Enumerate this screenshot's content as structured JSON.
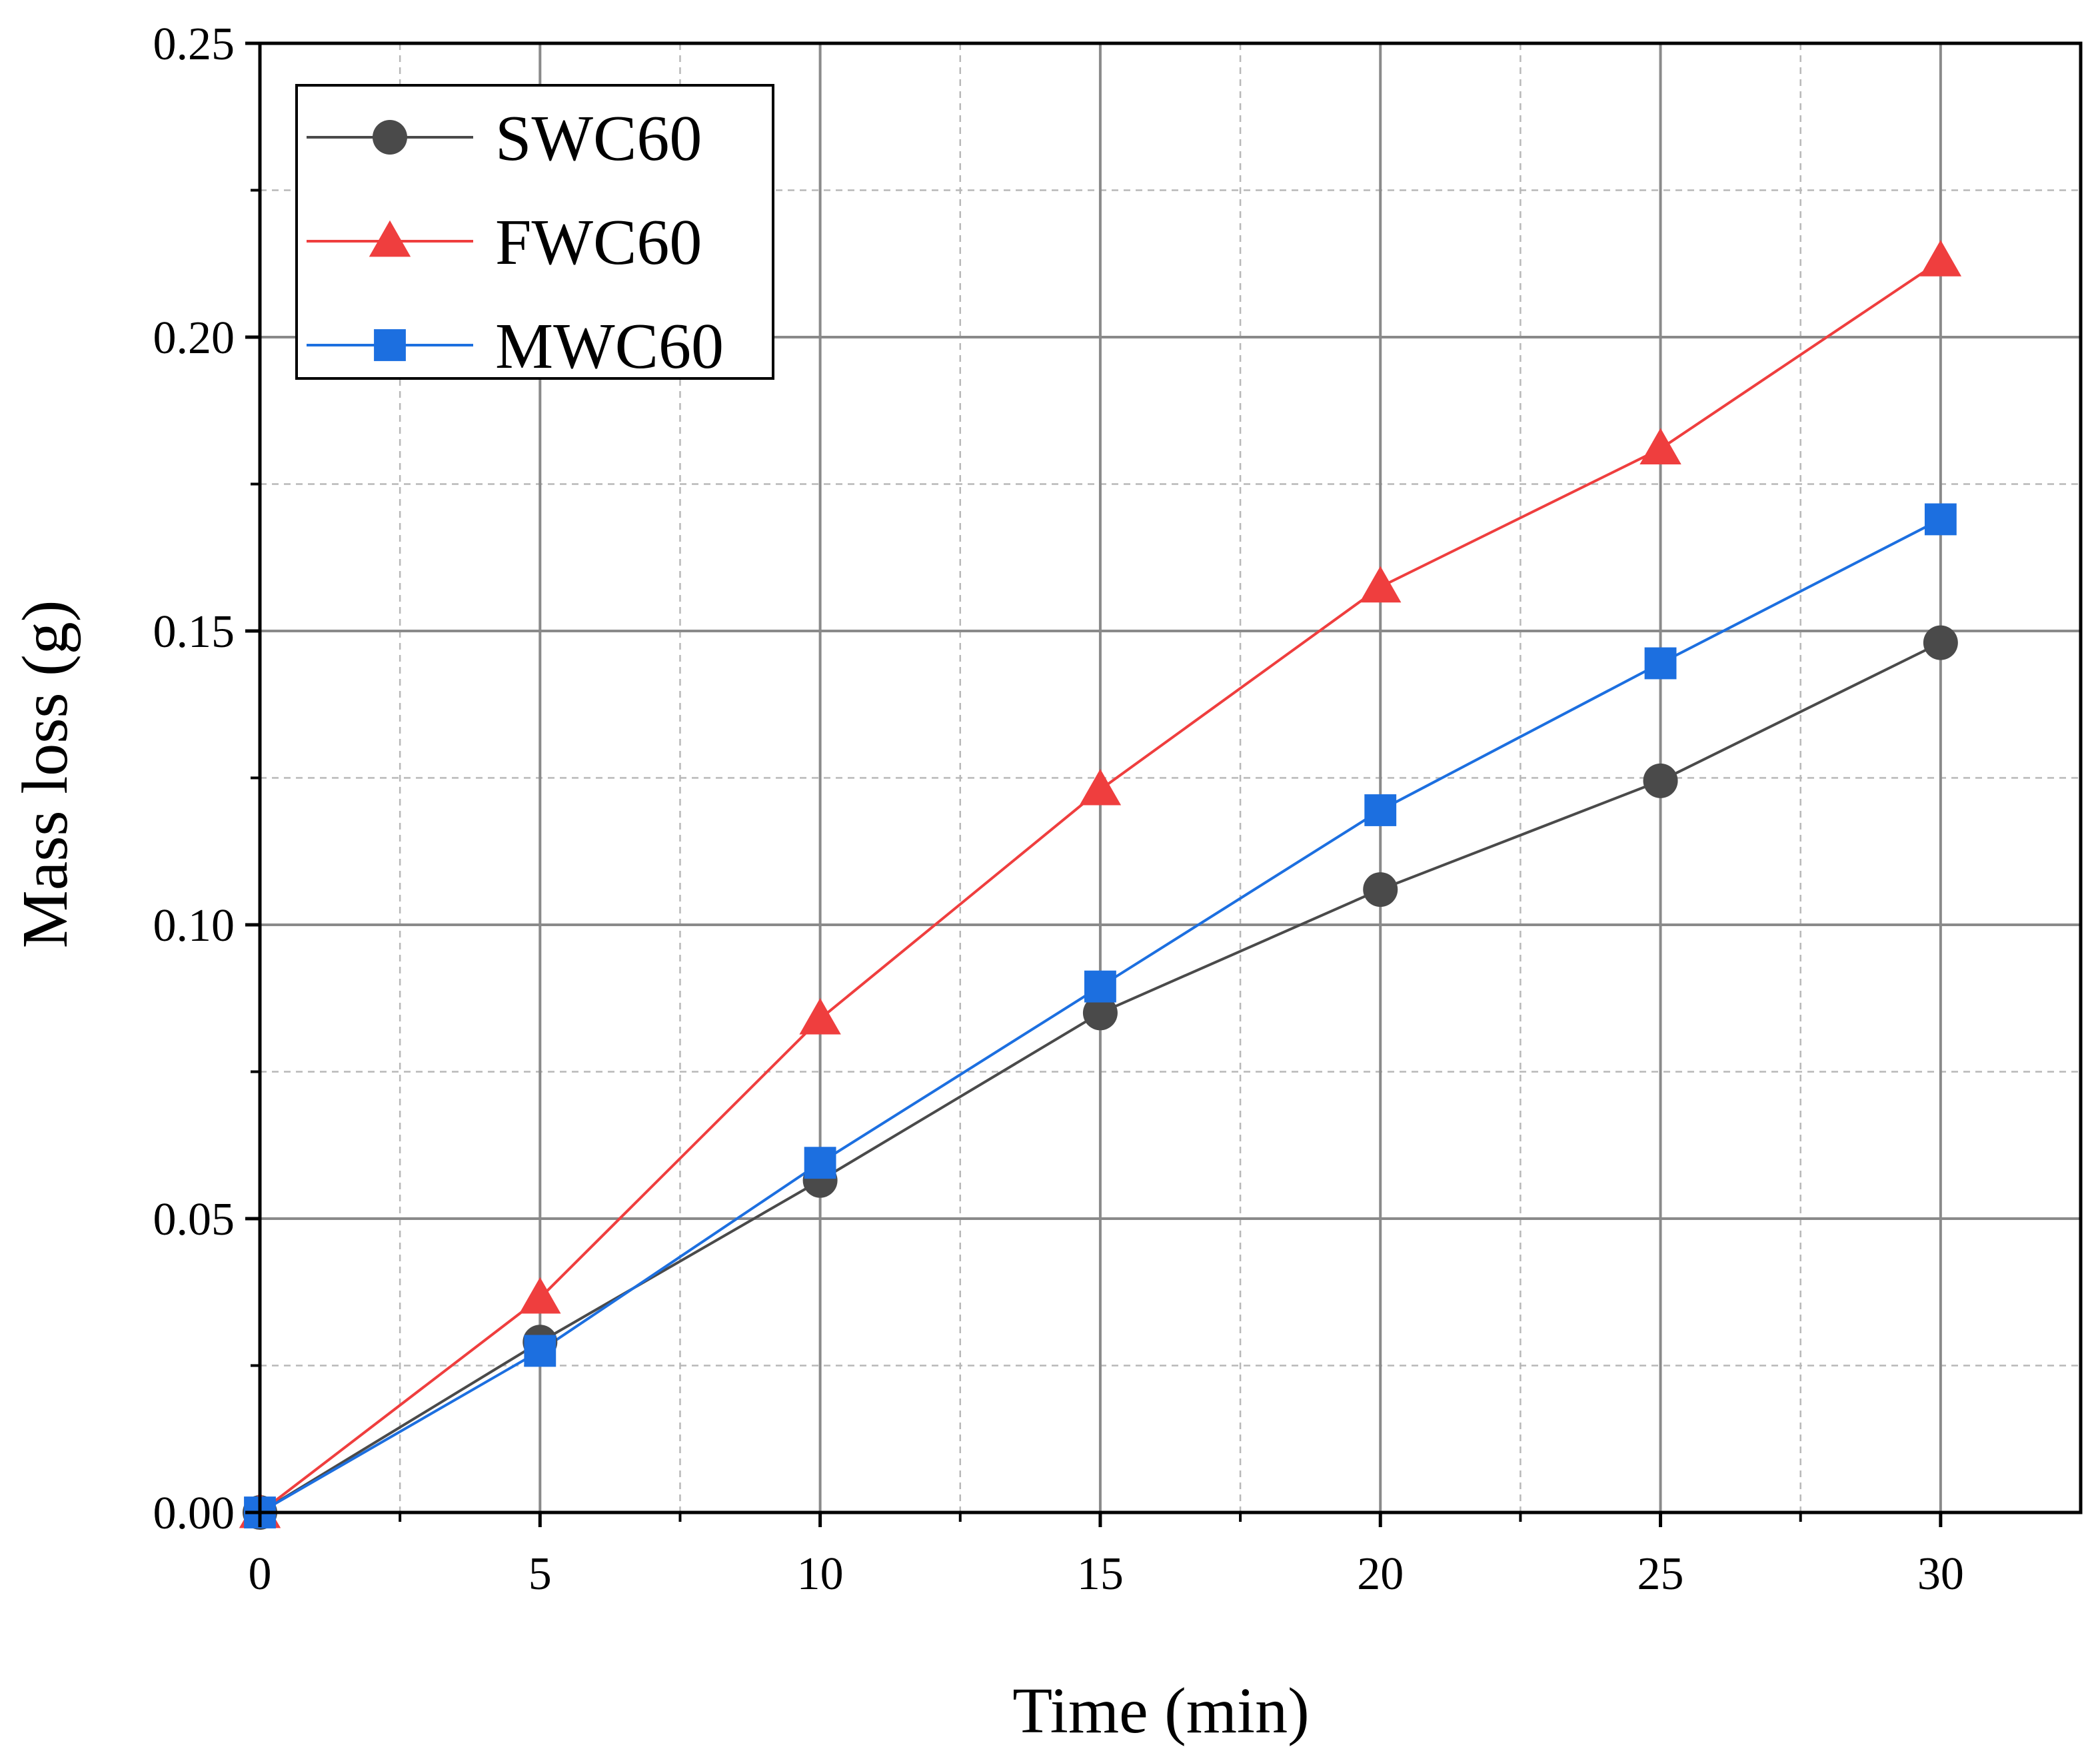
{
  "chart_data": {
    "type": "line",
    "title": "",
    "xlabel": "Time (min)",
    "ylabel": "Mass loss (g)",
    "xlim": [
      0,
      32.5
    ],
    "ylim": [
      0,
      0.25
    ],
    "x_ticks": [
      0,
      5,
      10,
      15,
      20,
      25,
      30
    ],
    "x_tick_labels": [
      "0",
      "5",
      "10",
      "15",
      "20",
      "25",
      "30"
    ],
    "y_ticks": [
      0,
      0.05,
      0.1,
      0.15,
      0.2,
      0.25
    ],
    "y_tick_labels": [
      "0.00",
      "0.05",
      "0.10",
      "0.15",
      "0.20",
      "0.25"
    ],
    "grid": true,
    "legend_position": "top-left",
    "x": [
      0,
      5,
      10,
      15,
      20,
      25,
      30
    ],
    "series": [
      {
        "name": "SWC60",
        "color": "#4a4a4a",
        "marker": "circle",
        "values": [
          0.0,
          0.029,
          0.0565,
          0.085,
          0.106,
          0.1245,
          0.148
        ]
      },
      {
        "name": "FWC60",
        "color": "#ef3e3e",
        "marker": "triangle",
        "values": [
          0.0,
          0.0365,
          0.084,
          0.123,
          0.1575,
          0.181,
          0.213
        ]
      },
      {
        "name": "MWC60",
        "color": "#1c6fe0",
        "marker": "square",
        "values": [
          0.0,
          0.0275,
          0.0595,
          0.0895,
          0.1195,
          0.1445,
          0.169
        ]
      }
    ]
  }
}
